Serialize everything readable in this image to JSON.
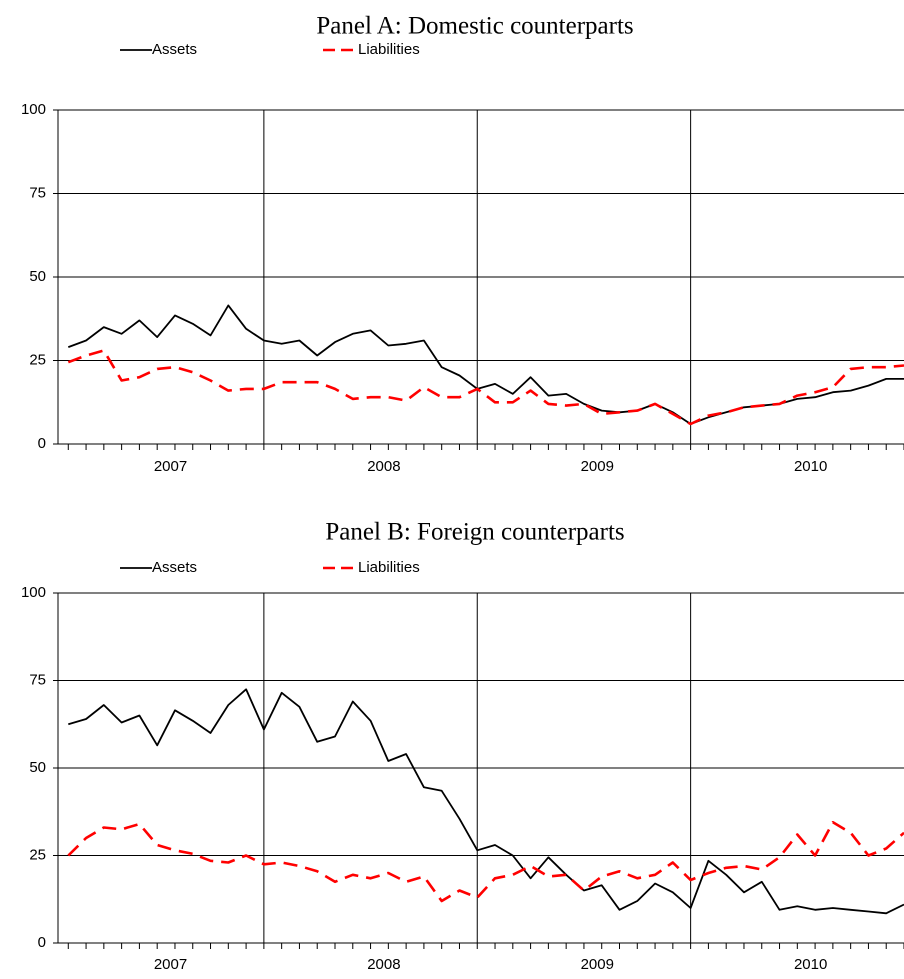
{
  "chart_data": [
    {
      "type": "line",
      "title": "Panel A: Domestic counterparts",
      "categories": [
        null,
        null,
        null,
        null,
        null,
        null,
        "2007",
        null,
        null,
        null,
        null,
        null,
        null,
        null,
        null,
        null,
        null,
        null,
        "2008",
        null,
        null,
        null,
        null,
        null,
        null,
        null,
        null,
        null,
        null,
        null,
        "2009",
        null,
        null,
        null,
        null,
        null,
        null,
        null,
        null,
        null,
        null,
        null,
        "2010",
        null,
        null,
        null,
        null,
        null
      ],
      "series": [
        {
          "name": "Assets",
          "color": "#000000",
          "values": [
            29,
            31,
            35,
            33,
            37,
            32,
            38.5,
            36,
            32.5,
            41.5,
            34.5,
            31,
            30,
            31,
            26.5,
            30.5,
            33,
            34,
            29.5,
            30,
            31,
            23,
            20.5,
            16.5,
            18,
            15,
            20,
            14.5,
            15,
            12,
            10,
            9.5,
            10,
            12,
            9.5,
            6,
            8,
            9.5,
            11,
            11.5,
            12,
            13.5,
            14,
            15.5,
            16,
            17.5,
            19.5,
            19.5
          ]
        },
        {
          "name": "Liabilities",
          "color": "#ff0000",
          "values": [
            24.5,
            26.5,
            28,
            19,
            20,
            22.5,
            23,
            21.5,
            19,
            16,
            16.5,
            16.5,
            18.5,
            18.5,
            18.5,
            16.5,
            13.5,
            14,
            14,
            13,
            17,
            14,
            14,
            16.5,
            12.5,
            12.5,
            16,
            12,
            11.5,
            12,
            9,
            9.5,
            10,
            12,
            9,
            6,
            8.5,
            9.5,
            11,
            11.5,
            12,
            14.5,
            15.5,
            17,
            22.5,
            23,
            23,
            23.5
          ]
        }
      ],
      "ylim": [
        0,
        100
      ],
      "yticks": [
        0,
        25,
        50,
        75,
        100
      ],
      "grid": true
    },
    {
      "type": "line",
      "title": "Panel B: Foreign counterparts",
      "categories": [
        null,
        null,
        null,
        null,
        null,
        null,
        "2007",
        null,
        null,
        null,
        null,
        null,
        null,
        null,
        null,
        null,
        null,
        null,
        "2008",
        null,
        null,
        null,
        null,
        null,
        null,
        null,
        null,
        null,
        null,
        null,
        "2009",
        null,
        null,
        null,
        null,
        null,
        null,
        null,
        null,
        null,
        null,
        null,
        "2010",
        null,
        null,
        null,
        null,
        null
      ],
      "series": [
        {
          "name": "Assets",
          "color": "#000000",
          "values": [
            62.5,
            64,
            68,
            63,
            65,
            56.5,
            66.5,
            63.5,
            60,
            68,
            72.5,
            61,
            71.5,
            67.5,
            57.5,
            59,
            69,
            63.5,
            52,
            54,
            44.5,
            43.5,
            35.5,
            26.5,
            28,
            25,
            18.5,
            24.5,
            19.5,
            15,
            16.5,
            9.5,
            12,
            17,
            14.5,
            10,
            23.5,
            19.5,
            14.5,
            17.5,
            9.5,
            10.5,
            9.5,
            10,
            9.5,
            9,
            8.5,
            11
          ]
        },
        {
          "name": "Liabilities",
          "color": "#ff0000",
          "values": [
            25,
            30,
            33,
            32.5,
            34,
            28,
            26.5,
            25.5,
            23.5,
            23,
            25,
            22.5,
            23,
            22,
            20.5,
            17.5,
            19.5,
            18.5,
            20,
            17.5,
            19,
            12,
            15,
            13,
            18.5,
            19.5,
            22,
            19,
            19.5,
            15,
            19,
            20.5,
            18.5,
            19.5,
            23,
            18,
            20,
            21.5,
            22,
            21,
            24.5,
            31,
            25,
            34.5,
            31.5,
            25,
            27,
            31.5
          ]
        }
      ],
      "ylim": [
        0,
        100
      ],
      "yticks": [
        0,
        25,
        50,
        75,
        100
      ],
      "grid": true
    }
  ]
}
